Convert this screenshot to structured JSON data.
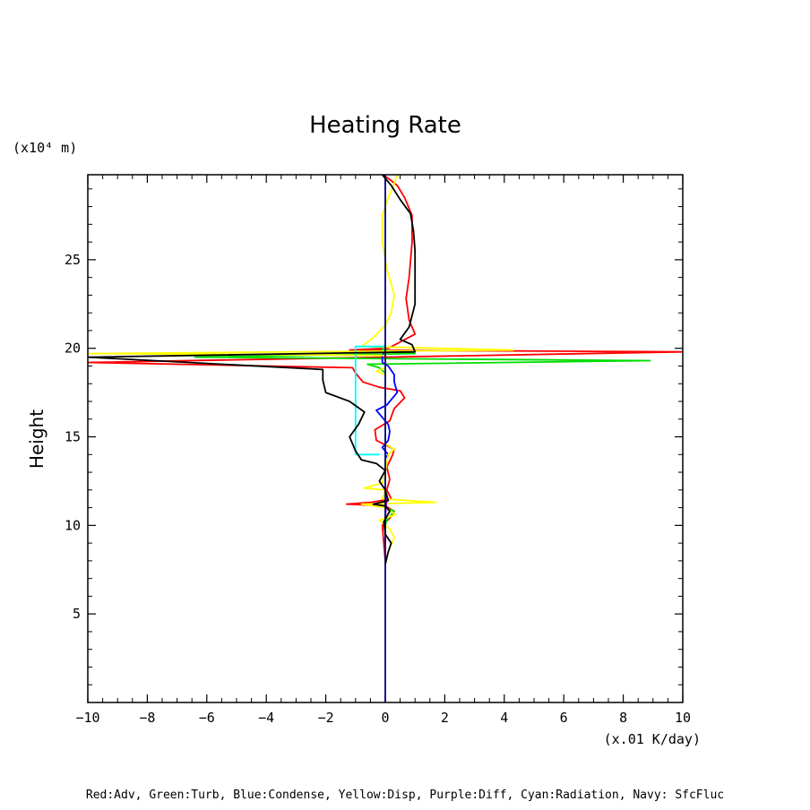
{
  "chart_data": {
    "type": "line",
    "title": "Heating Rate",
    "xlabel": "(x.01 K/day)",
    "ylabel": "Height",
    "y_unit_label": "(x10⁴ m)",
    "footer": "Red:Adv, Green:Turb, Blue:Condense, Yellow:Disp, Purple:Diff, Cyan:Radiation, Navy: SfcFluc",
    "xlim": [
      -10,
      10
    ],
    "ylim": [
      0,
      29.8
    ],
    "x_ticks": [
      -10,
      -8,
      -6,
      -4,
      -2,
      0,
      2,
      4,
      6,
      8,
      10
    ],
    "y_ticks": [
      5,
      10,
      15,
      20,
      25
    ],
    "grid": false,
    "series": [
      {
        "name": "Adv",
        "color": "#ff0000",
        "points": [
          [
            0,
            8
          ],
          [
            -0.05,
            9
          ],
          [
            -0.1,
            10
          ],
          [
            0.15,
            10.4
          ],
          [
            0.3,
            10.8
          ],
          [
            0,
            11.1
          ],
          [
            -1.3,
            11.2
          ],
          [
            -0.5,
            11.3
          ],
          [
            0.2,
            11.5
          ],
          [
            0.05,
            12
          ],
          [
            0.15,
            12.6
          ],
          [
            0.05,
            13.3
          ],
          [
            0.2,
            13.8
          ],
          [
            0.25,
            14
          ],
          [
            0.3,
            14.3
          ],
          [
            -0.3,
            14.8
          ],
          [
            -0.35,
            15.4
          ],
          [
            0.15,
            15.9
          ],
          [
            0.3,
            16.6
          ],
          [
            0.65,
            17.2
          ],
          [
            0.5,
            17.6
          ],
          [
            -0.2,
            17.8
          ],
          [
            -0.75,
            18.1
          ],
          [
            -1,
            18.6
          ],
          [
            -1.1,
            18.9
          ],
          [
            -10,
            19.2
          ],
          [
            10,
            19.8
          ],
          [
            -1.2,
            19.9
          ],
          [
            0.1,
            20
          ],
          [
            1,
            20.8
          ],
          [
            0.8,
            21.6
          ],
          [
            0.7,
            22.8
          ],
          [
            0.8,
            24
          ],
          [
            0.9,
            26
          ],
          [
            0.9,
            27.5
          ],
          [
            0.65,
            28.5
          ],
          [
            0.4,
            29.2
          ],
          [
            0.1,
            29.6
          ],
          [
            -0.1,
            29.8
          ]
        ]
      },
      {
        "name": "Turb",
        "color": "#00dd00",
        "points": [
          [
            0,
            10
          ],
          [
            0.05,
            10.3
          ],
          [
            0.3,
            10.8
          ],
          [
            0,
            11
          ],
          [
            0,
            18.6
          ],
          [
            -0.2,
            18.9
          ],
          [
            -0.6,
            19.1
          ],
          [
            8.9,
            19.3
          ],
          [
            -6.4,
            19.5
          ],
          [
            1,
            19.7
          ],
          [
            -0.1,
            19.9
          ],
          [
            0,
            20.2
          ]
        ]
      },
      {
        "name": "Condense",
        "color": "#0000ff",
        "points": [
          [
            0,
            13.8
          ],
          [
            0.1,
            14
          ],
          [
            -0.1,
            14.4
          ],
          [
            0.1,
            14.8
          ],
          [
            0.15,
            15.3
          ],
          [
            0.1,
            15.7
          ],
          [
            -0.1,
            16.1
          ],
          [
            -0.3,
            16.5
          ],
          [
            0.05,
            16.8
          ],
          [
            0.4,
            17.5
          ],
          [
            0.3,
            18.1
          ],
          [
            0.3,
            18.5
          ],
          [
            0.1,
            19
          ],
          [
            -0.1,
            19.2
          ],
          [
            -0.1,
            19.6
          ],
          [
            0,
            19.8
          ]
        ]
      },
      {
        "name": "Disp",
        "color": "#ffff00",
        "points": [
          [
            0,
            7.8
          ],
          [
            0.1,
            8.5
          ],
          [
            0.3,
            9.3
          ],
          [
            0.15,
            9.8
          ],
          [
            -0.2,
            10.3
          ],
          [
            0.35,
            10.6
          ],
          [
            0,
            11
          ],
          [
            -0.8,
            11.2
          ],
          [
            1.7,
            11.3
          ],
          [
            -0.1,
            11.5
          ],
          [
            0,
            12
          ],
          [
            -0.7,
            12.1
          ],
          [
            -0.1,
            12.4
          ],
          [
            0,
            13
          ],
          [
            0.1,
            14
          ],
          [
            0.3,
            14.3
          ],
          [
            0,
            14.6
          ],
          [
            0,
            18.5
          ],
          [
            -0.3,
            18.7
          ],
          [
            0,
            18.9
          ],
          [
            0,
            19.6
          ],
          [
            -10,
            19.7
          ],
          [
            4.3,
            19.9
          ],
          [
            -0.8,
            20.1
          ],
          [
            -0.4,
            20.6
          ],
          [
            0,
            21.3
          ],
          [
            0.2,
            22
          ],
          [
            0.3,
            23
          ],
          [
            0.05,
            24.5
          ],
          [
            -0.1,
            26
          ],
          [
            -0.1,
            27.5
          ],
          [
            0.1,
            28.5
          ],
          [
            0.3,
            29.3
          ],
          [
            0.4,
            29.8
          ]
        ]
      },
      {
        "name": "Diff",
        "color": "#9400d3",
        "points": [
          [
            0,
            9
          ],
          [
            0,
            10.5
          ],
          [
            0.05,
            11.5
          ],
          [
            0,
            12
          ]
        ]
      },
      {
        "name": "Radiation",
        "color": "#00ffff",
        "points": [
          [
            -0.2,
            14
          ],
          [
            -1,
            14
          ],
          [
            -1,
            20.1
          ],
          [
            0,
            20.1
          ]
        ]
      },
      {
        "name": "SfcFluc",
        "color": "#000080",
        "points": [
          [
            0,
            0
          ],
          [
            0,
            29.8
          ]
        ]
      },
      {
        "name": "",
        "color": "#000000",
        "points": [
          [
            0,
            7.8
          ],
          [
            0.1,
            8.5
          ],
          [
            0.2,
            9
          ],
          [
            0,
            9.5
          ],
          [
            -0.05,
            10.2
          ],
          [
            0.15,
            10.8
          ],
          [
            0,
            11.1
          ],
          [
            -0.4,
            11.2
          ],
          [
            0.1,
            11.4
          ],
          [
            0,
            12
          ],
          [
            -0.2,
            12.5
          ],
          [
            0,
            13.1
          ],
          [
            -0.3,
            13.5
          ],
          [
            -0.8,
            13.7
          ],
          [
            -1,
            14.2
          ],
          [
            -1.2,
            15
          ],
          [
            -0.9,
            15.7
          ],
          [
            -0.7,
            16.4
          ],
          [
            -1.2,
            17
          ],
          [
            -2,
            17.5
          ],
          [
            -2.1,
            18.2
          ],
          [
            -2.1,
            18.8
          ],
          [
            -10,
            19.5
          ],
          [
            1,
            19.8
          ],
          [
            0.9,
            20.2
          ],
          [
            0.5,
            20.5
          ],
          [
            0.8,
            21.2
          ],
          [
            1,
            22.5
          ],
          [
            1,
            24
          ],
          [
            1,
            25.5
          ],
          [
            0.95,
            26.6
          ],
          [
            0.85,
            27.6
          ],
          [
            0.5,
            28.4
          ],
          [
            0.2,
            29.2
          ],
          [
            -0.1,
            29.8
          ]
        ]
      }
    ]
  }
}
